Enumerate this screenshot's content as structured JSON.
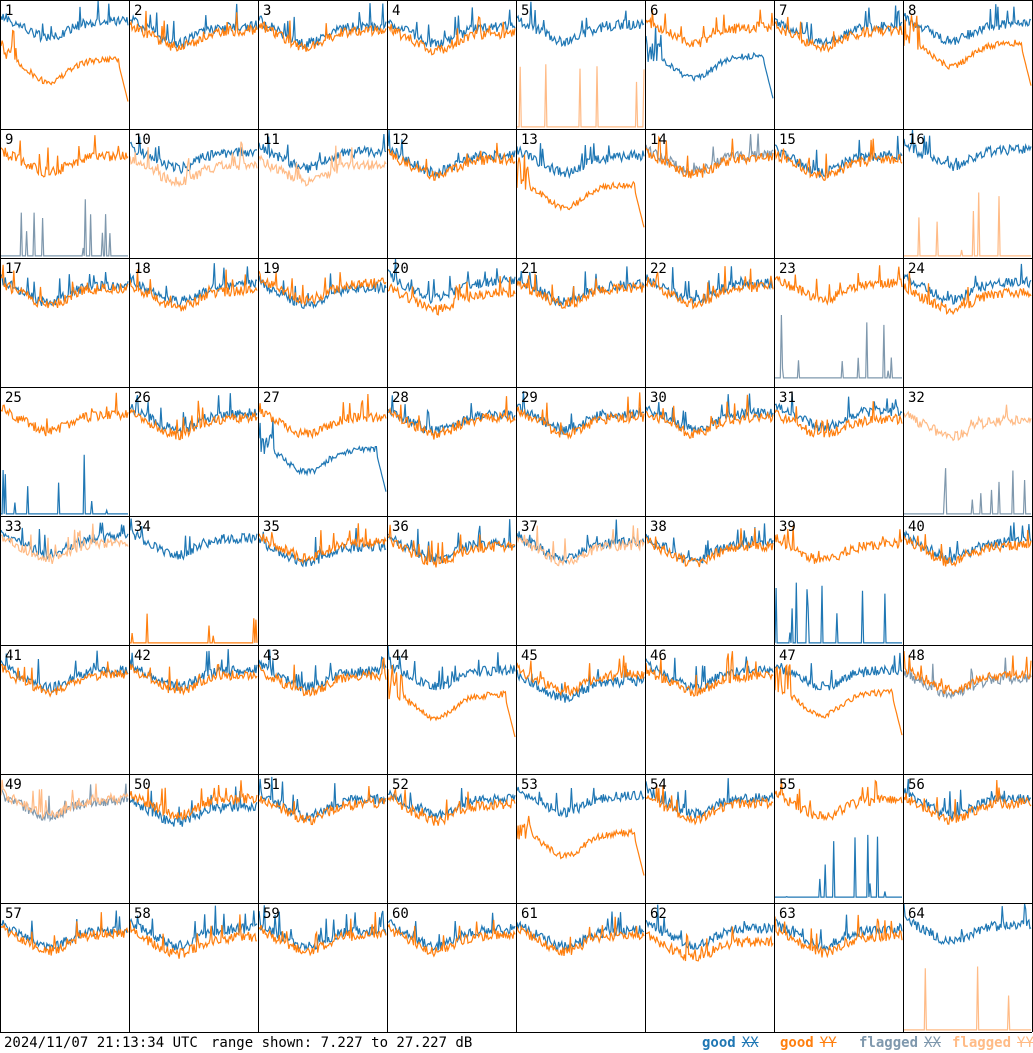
{
  "footer": {
    "timestamp": "2024/11/07 21:13:34 UTC",
    "range": "range shown: 7.227 to 27.227 dB",
    "legend": [
      {
        "label": "good",
        "marker": "XX",
        "color": "#1f77b4"
      },
      {
        "label": "good",
        "marker": "YY",
        "color": "#ff7f0e"
      },
      {
        "label": "flagged",
        "marker": "XX",
        "color": "#7f98ad"
      },
      {
        "label": "flagged",
        "marker": "YY",
        "color": "#ffbb86"
      }
    ]
  },
  "colors": {
    "good_xx": "#1f77b4",
    "good_yy": "#ff7f0e",
    "flagged_xx": "#7f98ad",
    "flagged_yy": "#ffbb86",
    "grid_lines": "#000000"
  },
  "chart_data": {
    "type": "line",
    "layout": "8x8 grid of small-multiple spectra",
    "ylim": [
      7.227,
      27.227
    ],
    "units": "dB",
    "tile_labels": [
      "1",
      "2",
      "3",
      "4",
      "5",
      "6",
      "7",
      "8",
      "9",
      "10",
      "11",
      "12",
      "13",
      "14",
      "15",
      "16",
      "17",
      "18",
      "19",
      "20",
      "21",
      "22",
      "23",
      "24",
      "25",
      "26",
      "27",
      "28",
      "29",
      "30",
      "31",
      "32",
      "33",
      "34",
      "35",
      "36",
      "37",
      "38",
      "39",
      "40",
      "41",
      "42",
      "43",
      "44",
      "45",
      "46",
      "47",
      "48",
      "49",
      "50",
      "51",
      "52",
      "53",
      "54",
      "55",
      "56",
      "57",
      "58",
      "59",
      "60",
      "61",
      "62",
      "63",
      "64"
    ],
    "tiles": [
      {
        "id": 1,
        "xx": {
          "status": "good",
          "shape": "normal",
          "level": 23.2
        },
        "yy": {
          "status": "good",
          "shape": "dropout",
          "level": 17.0
        }
      },
      {
        "id": 2,
        "xx": {
          "status": "good",
          "shape": "normal",
          "level": 22.5
        },
        "yy": {
          "status": "good",
          "shape": "normal",
          "level": 21.8
        }
      },
      {
        "id": 3,
        "xx": {
          "status": "good",
          "shape": "normal",
          "level": 22.4
        },
        "yy": {
          "status": "good",
          "shape": "normal",
          "level": 21.8
        }
      },
      {
        "id": 4,
        "xx": {
          "status": "good",
          "shape": "normal",
          "level": 22.3
        },
        "yy": {
          "status": "good",
          "shape": "normal",
          "level": 21.3
        }
      },
      {
        "id": 5,
        "xx": {
          "status": "good",
          "shape": "normal",
          "level": 22.7
        },
        "yy": {
          "status": "flagged",
          "shape": "spiky",
          "level": 7.4
        }
      },
      {
        "id": 6,
        "xx": {
          "status": "good",
          "shape": "dropout",
          "level": 17.5
        },
        "yy": {
          "status": "good",
          "shape": "normal",
          "level": 22.3
        }
      },
      {
        "id": 7,
        "xx": {
          "status": "good",
          "shape": "normal",
          "level": 22.5
        },
        "yy": {
          "status": "good",
          "shape": "normal",
          "level": 21.7
        }
      },
      {
        "id": 8,
        "xx": {
          "status": "good",
          "shape": "normal",
          "level": 22.8
        },
        "yy": {
          "status": "good",
          "shape": "dropout",
          "level": 19.5
        }
      },
      {
        "id": 9,
        "xx": {
          "status": "flagged",
          "shape": "spiky",
          "level": 7.4
        },
        "yy": {
          "status": "good",
          "shape": "normal",
          "level": 22.3
        }
      },
      {
        "id": 10,
        "xx": {
          "status": "good",
          "shape": "normal",
          "level": 23.0
        },
        "yy": {
          "status": "flagged",
          "shape": "normal",
          "level": 20.9
        }
      },
      {
        "id": 11,
        "xx": {
          "status": "good",
          "shape": "normal",
          "level": 23.0
        },
        "yy": {
          "status": "flagged",
          "shape": "normal",
          "level": 20.9
        }
      },
      {
        "id": 12,
        "xx": {
          "status": "good",
          "shape": "normal",
          "level": 22.4
        },
        "yy": {
          "status": "good",
          "shape": "normal",
          "level": 21.8
        }
      },
      {
        "id": 13,
        "xx": {
          "status": "good",
          "shape": "normal",
          "level": 22.3
        },
        "yy": {
          "status": "good",
          "shape": "dropout",
          "level": 17.5
        }
      },
      {
        "id": 14,
        "xx": {
          "status": "flagged",
          "shape": "normal",
          "level": 22.5
        },
        "yy": {
          "status": "good",
          "shape": "normal",
          "level": 22.0
        }
      },
      {
        "id": 15,
        "xx": {
          "status": "good",
          "shape": "normal",
          "level": 22.4
        },
        "yy": {
          "status": "good",
          "shape": "normal",
          "level": 21.7
        }
      },
      {
        "id": 16,
        "xx": {
          "status": "good",
          "shape": "normal",
          "level": 23.3
        },
        "yy": {
          "status": "flagged",
          "shape": "spiky",
          "level": 7.4
        }
      },
      {
        "id": 17,
        "xx": {
          "status": "good",
          "shape": "normal",
          "level": 22.2
        },
        "yy": {
          "status": "good",
          "shape": "normal",
          "level": 21.8
        }
      },
      {
        "id": 18,
        "xx": {
          "status": "good",
          "shape": "normal",
          "level": 22.3
        },
        "yy": {
          "status": "good",
          "shape": "normal",
          "level": 21.4
        }
      },
      {
        "id": 19,
        "xx": {
          "status": "good",
          "shape": "normal",
          "level": 21.9
        },
        "yy": {
          "status": "good",
          "shape": "normal",
          "level": 22.6
        }
      },
      {
        "id": 20,
        "xx": {
          "status": "good",
          "shape": "normal",
          "level": 22.8
        },
        "yy": {
          "status": "good",
          "shape": "normal",
          "level": 21.0
        }
      },
      {
        "id": 21,
        "xx": {
          "status": "good",
          "shape": "normal",
          "level": 22.3
        },
        "yy": {
          "status": "good",
          "shape": "normal",
          "level": 21.8
        }
      },
      {
        "id": 22,
        "xx": {
          "status": "good",
          "shape": "normal",
          "level": 22.5
        },
        "yy": {
          "status": "good",
          "shape": "normal",
          "level": 22.0
        }
      },
      {
        "id": 23,
        "xx": {
          "status": "flagged",
          "shape": "spiky",
          "level": 8.5
        },
        "yy": {
          "status": "good",
          "shape": "normal",
          "level": 22.6
        }
      },
      {
        "id": 24,
        "xx": {
          "status": "good",
          "shape": "normal",
          "level": 22.7
        },
        "yy": {
          "status": "good",
          "shape": "normal",
          "level": 21.0
        }
      },
      {
        "id": 25,
        "xx": {
          "status": "good",
          "shape": "spiky",
          "level": 7.4
        },
        "yy": {
          "status": "good",
          "shape": "normal",
          "level": 22.2
        }
      },
      {
        "id": 26,
        "xx": {
          "status": "good",
          "shape": "normal",
          "level": 22.4
        },
        "yy": {
          "status": "good",
          "shape": "normal",
          "level": 21.7
        }
      },
      {
        "id": 27,
        "xx": {
          "status": "good",
          "shape": "dropout",
          "level": 16.5
        },
        "yy": {
          "status": "good",
          "shape": "normal",
          "level": 21.8
        }
      },
      {
        "id": 28,
        "xx": {
          "status": "good",
          "shape": "normal",
          "level": 22.2
        },
        "yy": {
          "status": "good",
          "shape": "normal",
          "level": 21.7
        }
      },
      {
        "id": 29,
        "xx": {
          "status": "good",
          "shape": "normal",
          "level": 22.5
        },
        "yy": {
          "status": "good",
          "shape": "normal",
          "level": 21.8
        }
      },
      {
        "id": 30,
        "xx": {
          "status": "good",
          "shape": "normal",
          "level": 22.5
        },
        "yy": {
          "status": "good",
          "shape": "normal",
          "level": 21.8
        }
      },
      {
        "id": 31,
        "xx": {
          "status": "good",
          "shape": "normal",
          "level": 22.8
        },
        "yy": {
          "status": "good",
          "shape": "normal",
          "level": 21.5
        }
      },
      {
        "id": 32,
        "xx": {
          "status": "flagged",
          "shape": "spiky",
          "level": 7.4
        },
        "yy": {
          "status": "flagged",
          "shape": "normal",
          "level": 21.4
        }
      },
      {
        "id": 33,
        "xx": {
          "status": "good",
          "shape": "normal",
          "level": 23.2
        },
        "yy": {
          "status": "flagged",
          "shape": "normal",
          "level": 22.4
        }
      },
      {
        "id": 34,
        "xx": {
          "status": "good",
          "shape": "normal",
          "level": 23.1
        },
        "yy": {
          "status": "good",
          "shape": "spiky",
          "level": 7.4
        }
      },
      {
        "id": 35,
        "xx": {
          "status": "good",
          "shape": "normal",
          "level": 21.8
        },
        "yy": {
          "status": "good",
          "shape": "normal",
          "level": 22.5
        }
      },
      {
        "id": 36,
        "xx": {
          "status": "good",
          "shape": "normal",
          "level": 22.4
        },
        "yy": {
          "status": "good",
          "shape": "normal",
          "level": 21.8
        }
      },
      {
        "id": 37,
        "xx": {
          "status": "good",
          "shape": "normal",
          "level": 22.5
        },
        "yy": {
          "status": "flagged",
          "shape": "normal",
          "level": 22.0
        }
      },
      {
        "id": 38,
        "xx": {
          "status": "good",
          "shape": "normal",
          "level": 22.3
        },
        "yy": {
          "status": "good",
          "shape": "normal",
          "level": 21.8
        }
      },
      {
        "id": 39,
        "xx": {
          "status": "good",
          "shape": "spiky",
          "level": 7.4
        },
        "yy": {
          "status": "good",
          "shape": "normal",
          "level": 22.1
        }
      },
      {
        "id": 40,
        "xx": {
          "status": "good",
          "shape": "normal",
          "level": 22.5
        },
        "yy": {
          "status": "good",
          "shape": "normal",
          "level": 21.9
        }
      },
      {
        "id": 41,
        "xx": {
          "status": "good",
          "shape": "normal",
          "level": 22.5
        },
        "yy": {
          "status": "good",
          "shape": "normal",
          "level": 21.8
        }
      },
      {
        "id": 42,
        "xx": {
          "status": "good",
          "shape": "normal",
          "level": 22.6
        },
        "yy": {
          "status": "good",
          "shape": "normal",
          "level": 21.9
        }
      },
      {
        "id": 43,
        "xx": {
          "status": "good",
          "shape": "normal",
          "level": 22.5
        },
        "yy": {
          "status": "good",
          "shape": "normal",
          "level": 21.7
        }
      },
      {
        "id": 44,
        "xx": {
          "status": "good",
          "shape": "normal",
          "level": 22.6
        },
        "yy": {
          "status": "good",
          "shape": "dropout",
          "level": 18.5
        }
      },
      {
        "id": 45,
        "xx": {
          "status": "good",
          "shape": "normal",
          "level": 20.8
        },
        "yy": {
          "status": "good",
          "shape": "normal",
          "level": 21.9
        }
      },
      {
        "id": 46,
        "xx": {
          "status": "good",
          "shape": "normal",
          "level": 22.5
        },
        "yy": {
          "status": "good",
          "shape": "normal",
          "level": 21.8
        }
      },
      {
        "id": 47,
        "xx": {
          "status": "good",
          "shape": "normal",
          "level": 22.6
        },
        "yy": {
          "status": "good",
          "shape": "dropout",
          "level": 18.8
        }
      },
      {
        "id": 48,
        "xx": {
          "status": "flagged",
          "shape": "normal",
          "level": 21.3
        },
        "yy": {
          "status": "good",
          "shape": "normal",
          "level": 22.0
        }
      },
      {
        "id": 49,
        "xx": {
          "status": "flagged",
          "shape": "normal",
          "level": 22.4
        },
        "yy": {
          "status": "flagged",
          "shape": "normal",
          "level": 22.7
        }
      },
      {
        "id": 50,
        "xx": {
          "status": "good",
          "shape": "normal",
          "level": 21.5
        },
        "yy": {
          "status": "good",
          "shape": "normal",
          "level": 22.6
        }
      },
      {
        "id": 51,
        "xx": {
          "status": "good",
          "shape": "normal",
          "level": 22.6
        },
        "yy": {
          "status": "good",
          "shape": "normal",
          "level": 21.9
        }
      },
      {
        "id": 52,
        "xx": {
          "status": "good",
          "shape": "normal",
          "level": 22.7
        },
        "yy": {
          "status": "good",
          "shape": "normal",
          "level": 21.8
        }
      },
      {
        "id": 53,
        "xx": {
          "status": "good",
          "shape": "normal",
          "level": 23.2
        },
        "yy": {
          "status": "good",
          "shape": "dropout",
          "level": 17.0
        }
      },
      {
        "id": 54,
        "xx": {
          "status": "good",
          "shape": "normal",
          "level": 22.9
        },
        "yy": {
          "status": "good",
          "shape": "normal",
          "level": 22.0
        }
      },
      {
        "id": 55,
        "xx": {
          "status": "good",
          "shape": "spiky",
          "level": 8.0
        },
        "yy": {
          "status": "good",
          "shape": "normal",
          "level": 22.5
        }
      },
      {
        "id": 56,
        "xx": {
          "status": "good",
          "shape": "normal",
          "level": 22.6
        },
        "yy": {
          "status": "good",
          "shape": "normal",
          "level": 22.0
        }
      },
      {
        "id": 57,
        "xx": {
          "status": "good",
          "shape": "normal",
          "level": 22.3
        },
        "yy": {
          "status": "good",
          "shape": "normal",
          "level": 21.7
        }
      },
      {
        "id": 58,
        "xx": {
          "status": "good",
          "shape": "normal",
          "level": 22.5
        },
        "yy": {
          "status": "good",
          "shape": "normal",
          "level": 21.2
        }
      },
      {
        "id": 59,
        "xx": {
          "status": "good",
          "shape": "normal",
          "level": 22.3
        },
        "yy": {
          "status": "good",
          "shape": "normal",
          "level": 21.6
        }
      },
      {
        "id": 60,
        "xx": {
          "status": "good",
          "shape": "normal",
          "level": 22.4
        },
        "yy": {
          "status": "good",
          "shape": "normal",
          "level": 21.6
        }
      },
      {
        "id": 61,
        "xx": {
          "status": "good",
          "shape": "normal",
          "level": 22.3
        },
        "yy": {
          "status": "good",
          "shape": "normal",
          "level": 21.6
        }
      },
      {
        "id": 62,
        "xx": {
          "status": "good",
          "shape": "normal",
          "level": 22.6
        },
        "yy": {
          "status": "good",
          "shape": "normal",
          "level": 20.5
        }
      },
      {
        "id": 63,
        "xx": {
          "status": "good",
          "shape": "normal",
          "level": 22.4
        },
        "yy": {
          "status": "good",
          "shape": "normal",
          "level": 21.4
        }
      },
      {
        "id": 64,
        "xx": {
          "status": "good",
          "shape": "normal",
          "level": 23.1
        },
        "yy": {
          "status": "flagged",
          "shape": "spiky",
          "level": 7.4
        }
      }
    ]
  }
}
